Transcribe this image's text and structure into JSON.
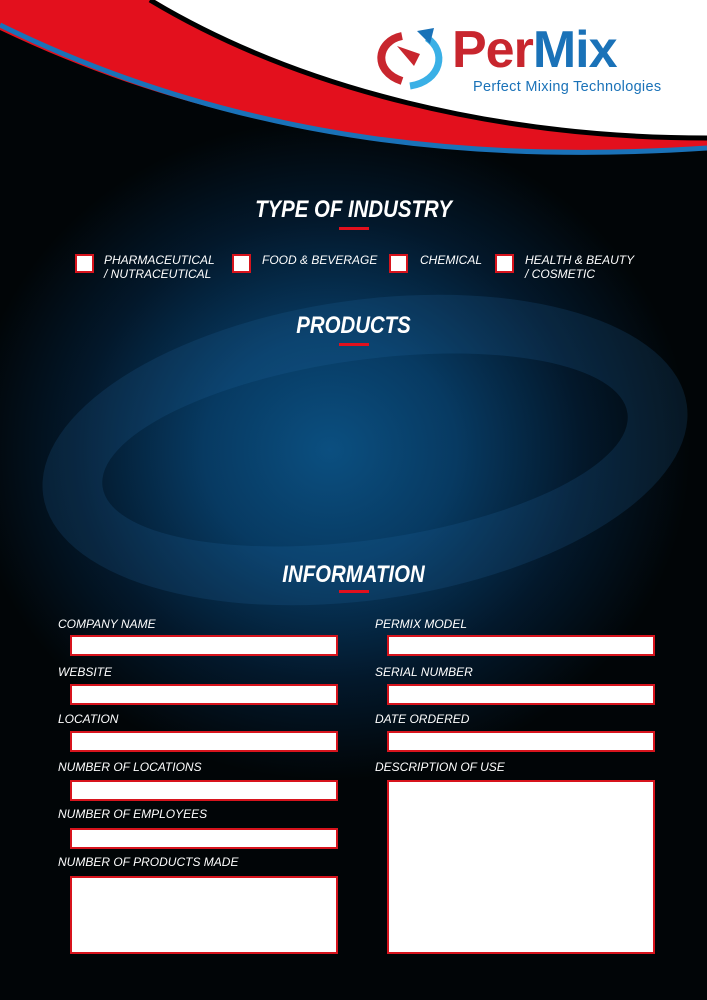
{
  "brand": {
    "name_part1": "Per",
    "name_part2": "Mix",
    "tagline": "Perfect Mixing Technologies",
    "colors": {
      "red": "#e3101d",
      "blue": "#1a72b8"
    }
  },
  "sections": {
    "industry": "TYPE OF INDUSTRY",
    "products": "PRODUCTS",
    "information": "INFORMATION"
  },
  "industry_options": [
    {
      "line1": "PHARMACEUTICAL",
      "line2": "/ NUTRACEUTICAL",
      "checked": false
    },
    {
      "line1": "FOOD & BEVERAGE",
      "line2": "",
      "checked": false
    },
    {
      "line1": "CHEMICAL",
      "line2": "",
      "checked": false
    },
    {
      "line1": "HEALTH & BEAUTY",
      "line2": "/ COSMETIC",
      "checked": false
    }
  ],
  "fields_left": [
    {
      "label": "COMPANY NAME",
      "value": ""
    },
    {
      "label": "WEBSITE",
      "value": ""
    },
    {
      "label": "LOCATION",
      "value": ""
    },
    {
      "label": "NUMBER OF LOCATIONS",
      "value": ""
    },
    {
      "label": "NUMBER OF EMPLOYEES",
      "value": ""
    },
    {
      "label": "NUMBER OF PRODUCTS MADE",
      "value": ""
    }
  ],
  "fields_right": [
    {
      "label": "PERMIX MODEL",
      "value": ""
    },
    {
      "label": "SERIAL NUMBER",
      "value": ""
    },
    {
      "label": "DATE ORDERED",
      "value": ""
    },
    {
      "label": "DESCRIPTION OF USE",
      "value": ""
    }
  ]
}
